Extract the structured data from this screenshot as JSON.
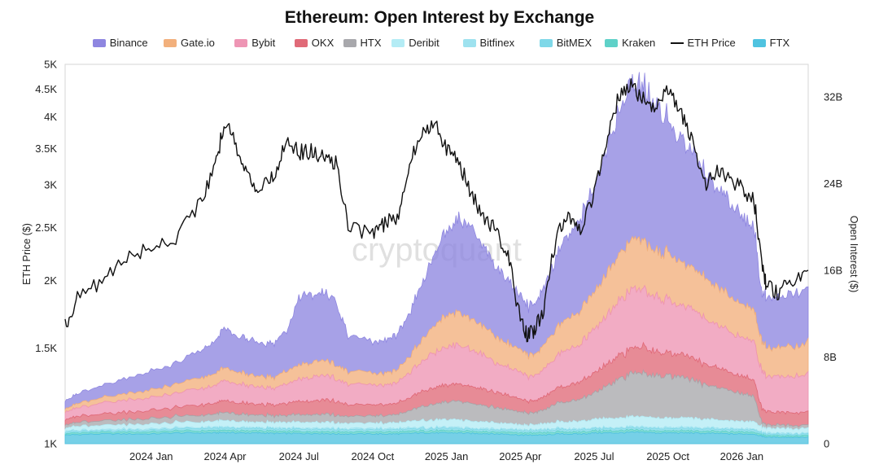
{
  "chart_data": {
    "type": "area",
    "title": "Ethereum: Open Interest by Exchange",
    "watermark": "cryptoquant",
    "left_axis": {
      "label": "ETH Price ($)",
      "scale": "log",
      "range": [
        1000,
        5000
      ],
      "ticks": [
        {
          "value": 1000,
          "label": "1K"
        },
        {
          "value": 1500,
          "label": "1.5K"
        },
        {
          "value": 2000,
          "label": "2K"
        },
        {
          "value": 2500,
          "label": "2.5K"
        },
        {
          "value": 3000,
          "label": "3K"
        },
        {
          "value": 3500,
          "label": "3.5K"
        },
        {
          "value": 4000,
          "label": "4K"
        },
        {
          "value": 4500,
          "label": "4.5K"
        },
        {
          "value": 5000,
          "label": "5K"
        }
      ]
    },
    "right_axis": {
      "label": "Open Interest ($)",
      "range": [
        0,
        35000000000
      ],
      "ticks": [
        {
          "value": 0,
          "label": "0"
        },
        {
          "value": 8000000000,
          "label": "8B"
        },
        {
          "value": 16000000000,
          "label": "16B"
        },
        {
          "value": 24000000000,
          "label": "24B"
        },
        {
          "value": 32000000000,
          "label": "32B"
        }
      ]
    },
    "x_axis": {
      "range_month_index": [
        -3.5,
        26.7
      ],
      "ticks": [
        {
          "month_index": 0,
          "label": "2024 Jan"
        },
        {
          "month_index": 3,
          "label": "2024 Apr"
        },
        {
          "month_index": 6,
          "label": "2024 Jul"
        },
        {
          "month_index": 9,
          "label": "2024 Oct"
        },
        {
          "month_index": 12,
          "label": "2025 Jan"
        },
        {
          "month_index": 15,
          "label": "2025 Apr"
        },
        {
          "month_index": 18,
          "label": "2025 Jul"
        },
        {
          "month_index": 21,
          "label": "2025 Oct"
        },
        {
          "month_index": 24,
          "label": "2026 Jan"
        }
      ]
    },
    "x_month_index": [
      -3.5,
      -3.0,
      -2.0,
      -1.0,
      0.0,
      1.0,
      2.0,
      2.6,
      3.0,
      3.5,
      4.0,
      4.5,
      5.0,
      5.5,
      6.0,
      6.5,
      7.0,
      7.5,
      8.0,
      9.0,
      9.5,
      10.0,
      10.5,
      11.0,
      11.5,
      12.0,
      12.5,
      13.0,
      13.5,
      14.0,
      14.5,
      15.0,
      15.3,
      15.6,
      16.0,
      16.5,
      17.0,
      17.5,
      18.0,
      18.5,
      19.0,
      19.5,
      20.0,
      20.5,
      21.0,
      21.5,
      22.0,
      22.5,
      23.0,
      23.5,
      24.0,
      24.5,
      24.8,
      25.0,
      25.5,
      26.0,
      26.7
    ],
    "eth_price": [
      1650,
      1850,
      2000,
      2200,
      2300,
      2400,
      2800,
      3200,
      3950,
      3500,
      3050,
      2950,
      3100,
      3650,
      3450,
      3450,
      3350,
      3300,
      2500,
      2450,
      2550,
      2600,
      3300,
      3700,
      3950,
      3500,
      3300,
      2900,
      2600,
      2500,
      2200,
      1680,
      1580,
      1620,
      1800,
      2450,
      2600,
      2500,
      2900,
      3650,
      4350,
      4550,
      4300,
      4150,
      4450,
      4100,
      3600,
      3000,
      3150,
      3100,
      2950,
      2800,
      2200,
      1950,
      1900,
      1980,
      2050
    ],
    "series": [
      {
        "name": "FTX",
        "color": "#4fc3e0",
        "values": [
          0.8,
          0.85,
          0.9,
          0.9,
          0.9,
          1.0,
          1.0,
          1.0,
          1.05,
          1.0,
          1.0,
          1.0,
          0.95,
          0.95,
          0.95,
          0.95,
          0.95,
          0.9,
          0.9,
          0.9,
          0.9,
          0.9,
          0.95,
          1.0,
          1.0,
          1.0,
          1.0,
          0.95,
          0.95,
          0.9,
          0.9,
          0.8,
          0.8,
          0.8,
          0.8,
          0.9,
          0.9,
          0.9,
          1.0,
          1.0,
          1.0,
          1.05,
          1.05,
          1.0,
          1.0,
          1.0,
          1.0,
          0.95,
          0.95,
          0.9,
          0.9,
          0.9,
          0.7,
          0.6,
          0.6,
          0.6,
          0.6
        ]
      },
      {
        "name": "Kraken",
        "color": "#5fd1c8",
        "values": [
          0.15,
          0.15,
          0.15,
          0.2,
          0.2,
          0.2,
          0.2,
          0.2,
          0.2,
          0.2,
          0.2,
          0.2,
          0.2,
          0.2,
          0.2,
          0.2,
          0.2,
          0.2,
          0.2,
          0.2,
          0.2,
          0.2,
          0.2,
          0.2,
          0.2,
          0.2,
          0.2,
          0.2,
          0.2,
          0.2,
          0.2,
          0.2,
          0.2,
          0.2,
          0.2,
          0.2,
          0.2,
          0.2,
          0.2,
          0.2,
          0.2,
          0.2,
          0.2,
          0.2,
          0.2,
          0.2,
          0.2,
          0.2,
          0.2,
          0.2,
          0.2,
          0.2,
          0.15,
          0.15,
          0.15,
          0.15,
          0.15
        ]
      },
      {
        "name": "BitMEX",
        "color": "#7fd8e8",
        "values": [
          0.15,
          0.15,
          0.15,
          0.15,
          0.15,
          0.2,
          0.2,
          0.2,
          0.2,
          0.2,
          0.2,
          0.2,
          0.2,
          0.2,
          0.2,
          0.2,
          0.2,
          0.2,
          0.2,
          0.2,
          0.2,
          0.2,
          0.2,
          0.2,
          0.2,
          0.2,
          0.2,
          0.2,
          0.2,
          0.2,
          0.2,
          0.2,
          0.2,
          0.2,
          0.2,
          0.2,
          0.2,
          0.2,
          0.2,
          0.2,
          0.2,
          0.2,
          0.2,
          0.2,
          0.2,
          0.2,
          0.2,
          0.2,
          0.2,
          0.2,
          0.2,
          0.2,
          0.15,
          0.15,
          0.15,
          0.15,
          0.15
        ]
      },
      {
        "name": "Bitfinex",
        "color": "#9ee2ef",
        "values": [
          0.1,
          0.1,
          0.1,
          0.1,
          0.1,
          0.1,
          0.1,
          0.1,
          0.1,
          0.1,
          0.1,
          0.1,
          0.1,
          0.1,
          0.1,
          0.1,
          0.1,
          0.1,
          0.1,
          0.1,
          0.1,
          0.1,
          0.1,
          0.1,
          0.1,
          0.1,
          0.1,
          0.1,
          0.1,
          0.1,
          0.1,
          0.1,
          0.1,
          0.1,
          0.1,
          0.1,
          0.1,
          0.1,
          0.1,
          0.1,
          0.1,
          0.1,
          0.1,
          0.1,
          0.1,
          0.1,
          0.1,
          0.1,
          0.1,
          0.1,
          0.1,
          0.1,
          0.1,
          0.1,
          0.1,
          0.1,
          0.1
        ]
      },
      {
        "name": "Deribit",
        "color": "#b4ecf5",
        "values": [
          0.3,
          0.35,
          0.4,
          0.4,
          0.45,
          0.5,
          0.5,
          0.55,
          0.6,
          0.55,
          0.5,
          0.5,
          0.5,
          0.55,
          0.55,
          0.55,
          0.55,
          0.5,
          0.5,
          0.5,
          0.5,
          0.55,
          0.6,
          0.65,
          0.7,
          0.7,
          0.7,
          0.65,
          0.6,
          0.55,
          0.5,
          0.45,
          0.45,
          0.45,
          0.5,
          0.6,
          0.65,
          0.7,
          0.8,
          0.85,
          0.9,
          0.95,
          0.95,
          0.9,
          0.85,
          0.85,
          0.85,
          0.8,
          0.75,
          0.7,
          0.7,
          0.65,
          0.5,
          0.45,
          0.45,
          0.45,
          0.45
        ]
      },
      {
        "name": "HTX",
        "color": "#a8a8ac",
        "values": [
          0.3,
          0.35,
          0.4,
          0.45,
          0.5,
          0.55,
          0.6,
          0.65,
          0.75,
          0.7,
          0.65,
          0.65,
          0.6,
          0.65,
          0.7,
          0.7,
          0.75,
          0.7,
          0.65,
          0.65,
          0.7,
          0.75,
          1.0,
          1.3,
          1.5,
          1.6,
          1.7,
          1.6,
          1.5,
          1.4,
          1.3,
          1.2,
          1.1,
          1.1,
          1.3,
          1.7,
          1.9,
          2.1,
          2.5,
          3.0,
          3.5,
          4.0,
          4.0,
          3.9,
          3.9,
          3.7,
          3.5,
          3.2,
          3.0,
          2.8,
          2.6,
          2.3,
          0.5,
          0.3,
          0.3,
          0.3,
          0.3
        ]
      },
      {
        "name": "OKX",
        "color": "#e06a78",
        "values": [
          0.5,
          0.55,
          0.6,
          0.7,
          0.75,
          0.85,
          0.95,
          1.0,
          1.1,
          1.05,
          1.0,
          1.0,
          1.0,
          1.1,
          1.2,
          1.25,
          1.3,
          1.25,
          1.1,
          1.0,
          1.0,
          1.05,
          1.2,
          1.4,
          1.5,
          1.55,
          1.6,
          1.55,
          1.5,
          1.4,
          1.3,
          1.2,
          1.1,
          1.1,
          1.2,
          1.4,
          1.5,
          1.6,
          1.8,
          2.0,
          2.2,
          2.3,
          2.4,
          2.2,
          2.1,
          2.1,
          2.0,
          1.9,
          1.8,
          1.7,
          1.6,
          1.5,
          1.3,
          1.2,
          1.2,
          1.2,
          1.2
        ]
      },
      {
        "name": "Bybit",
        "color": "#ee95b4",
        "values": [
          0.7,
          0.8,
          1.0,
          1.1,
          1.2,
          1.3,
          1.5,
          1.6,
          1.9,
          1.8,
          1.6,
          1.6,
          1.5,
          1.8,
          2.0,
          2.2,
          2.3,
          2.1,
          1.9,
          1.8,
          1.8,
          1.9,
          2.3,
          2.8,
          3.2,
          3.5,
          3.6,
          3.4,
          3.1,
          2.8,
          2.6,
          2.4,
          2.3,
          2.3,
          2.5,
          3.0,
          3.3,
          3.6,
          4.0,
          4.5,
          5.0,
          5.3,
          5.3,
          5.0,
          4.8,
          4.6,
          4.4,
          4.2,
          4.0,
          3.8,
          3.6,
          3.5,
          3.4,
          3.3,
          3.3,
          3.4,
          3.5
        ]
      },
      {
        "name": "Gate.io",
        "color": "#f2b07c",
        "values": [
          0.3,
          0.4,
          0.5,
          0.6,
          0.7,
          0.8,
          1.0,
          1.1,
          1.2,
          1.1,
          1.0,
          1.0,
          1.0,
          1.2,
          1.3,
          1.4,
          1.4,
          1.3,
          1.2,
          1.1,
          1.1,
          1.2,
          1.5,
          2.0,
          2.5,
          2.9,
          3.0,
          2.8,
          2.6,
          2.4,
          2.2,
          2.0,
          2.0,
          2.0,
          2.2,
          2.6,
          2.9,
          3.1,
          3.4,
          3.8,
          4.2,
          4.5,
          4.6,
          4.3,
          4.2,
          4.1,
          3.9,
          3.7,
          3.5,
          3.3,
          3.1,
          2.9,
          2.8,
          2.7,
          2.7,
          2.8,
          2.9
        ]
      },
      {
        "name": "Binance",
        "color": "#8e86e0",
        "values": [
          0.7,
          0.9,
          1.1,
          1.4,
          1.7,
          1.9,
          2.5,
          3.0,
          3.6,
          3.3,
          3.2,
          3.2,
          3.1,
          3.6,
          6.3,
          6.3,
          6.2,
          6.0,
          3.2,
          2.9,
          3.0,
          3.2,
          4.0,
          5.2,
          6.5,
          7.8,
          8.6,
          8.3,
          7.4,
          6.5,
          5.8,
          5.0,
          4.5,
          4.7,
          5.4,
          6.8,
          7.6,
          8.4,
          9.9,
          11.6,
          13.4,
          14.5,
          14.4,
          13.2,
          12.3,
          11.5,
          10.7,
          9.8,
          9.2,
          8.7,
          8.2,
          7.6,
          4.4,
          4.6,
          4.6,
          4.8,
          5.1
        ]
      }
    ],
    "legend": [
      {
        "name": "Binance",
        "kind": "area",
        "color": "#8e86e0"
      },
      {
        "name": "Gate.io",
        "kind": "area",
        "color": "#f2b07c"
      },
      {
        "name": "Bybit",
        "kind": "area",
        "color": "#ee95b4"
      },
      {
        "name": "OKX",
        "kind": "area",
        "color": "#e06a78"
      },
      {
        "name": "HTX",
        "kind": "area",
        "color": "#a8a8ac"
      },
      {
        "name": "Deribit",
        "kind": "area",
        "color": "#b4ecf5"
      },
      {
        "name": "Bitfinex",
        "kind": "area",
        "color": "#9ee2ef"
      },
      {
        "name": "BitMEX",
        "kind": "area",
        "color": "#7fd8e8"
      },
      {
        "name": "Kraken",
        "kind": "area",
        "color": "#5fd1c8"
      },
      {
        "name": "ETH Price",
        "kind": "line",
        "color": "#111111"
      },
      {
        "name": "FTX",
        "kind": "area",
        "color": "#4fc3e0"
      }
    ],
    "series_units": "billion USD (stacked)",
    "legend_position": "top-center"
  }
}
